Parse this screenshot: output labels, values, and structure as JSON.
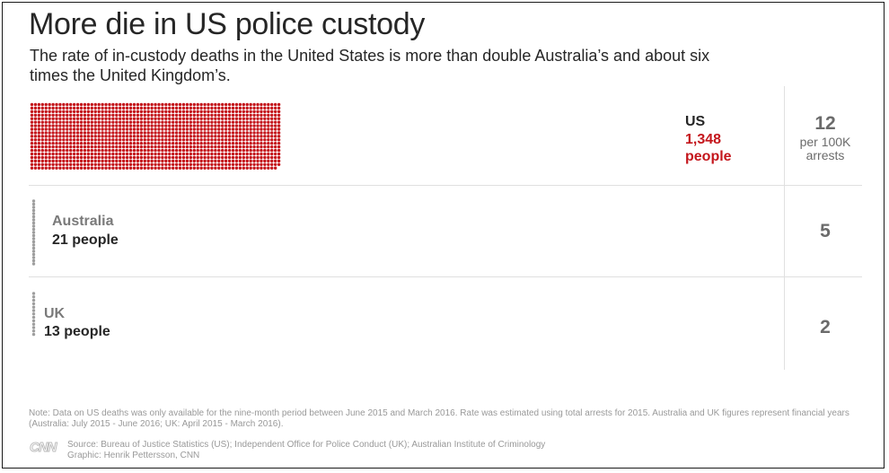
{
  "title": "More die in US police custody",
  "subtitle": "The rate of in-custody deaths in the United States is more than double Australia’s and about six times the United Kingdom’s.",
  "chart_data": {
    "type": "waffle",
    "categories": [
      "US",
      "Australia",
      "UK"
    ],
    "series": [
      {
        "name": "",
        "values": [
          1348,
          21,
          13
        ]
      },
      {
        "name": "",
        "values": [
          12,
          5,
          2
        ]
      }
    ],
    "rows": [
      {
        "country": "US",
        "people_label": "1,348",
        "people_word": "people",
        "deaths": 1348,
        "rate": "12",
        "rate_unit_line1": "per 100K",
        "rate_unit_line2": "arrests",
        "dot_color": "#c4161c",
        "highlight": true
      },
      {
        "country": "Australia",
        "people_label": "21 people",
        "deaths": 21,
        "rate": "5",
        "dot_color": "#9e9e9e",
        "highlight": false
      },
      {
        "country": "UK",
        "people_label": "13 people",
        "deaths": 13,
        "rate": "2",
        "dot_color": "#9e9e9e",
        "highlight": false
      }
    ],
    "grid": false
  },
  "note": "Note: Data on US deaths was only available for the nine-month period between June 2015 and March 2016. Rate was estimated using total arrests for 2015. Australia and UK figures represent financial years (Australia: July 2015 - June 2016; UK: April 2015 - March 2016).",
  "footer": {
    "logo": "CNN",
    "source": "Source: Bureau of Justice Statistics (US); Independent Office for Police Conduct (UK); Australian Institute of Criminology",
    "graphic": "Graphic: Henrik Pettersson, CNN"
  }
}
